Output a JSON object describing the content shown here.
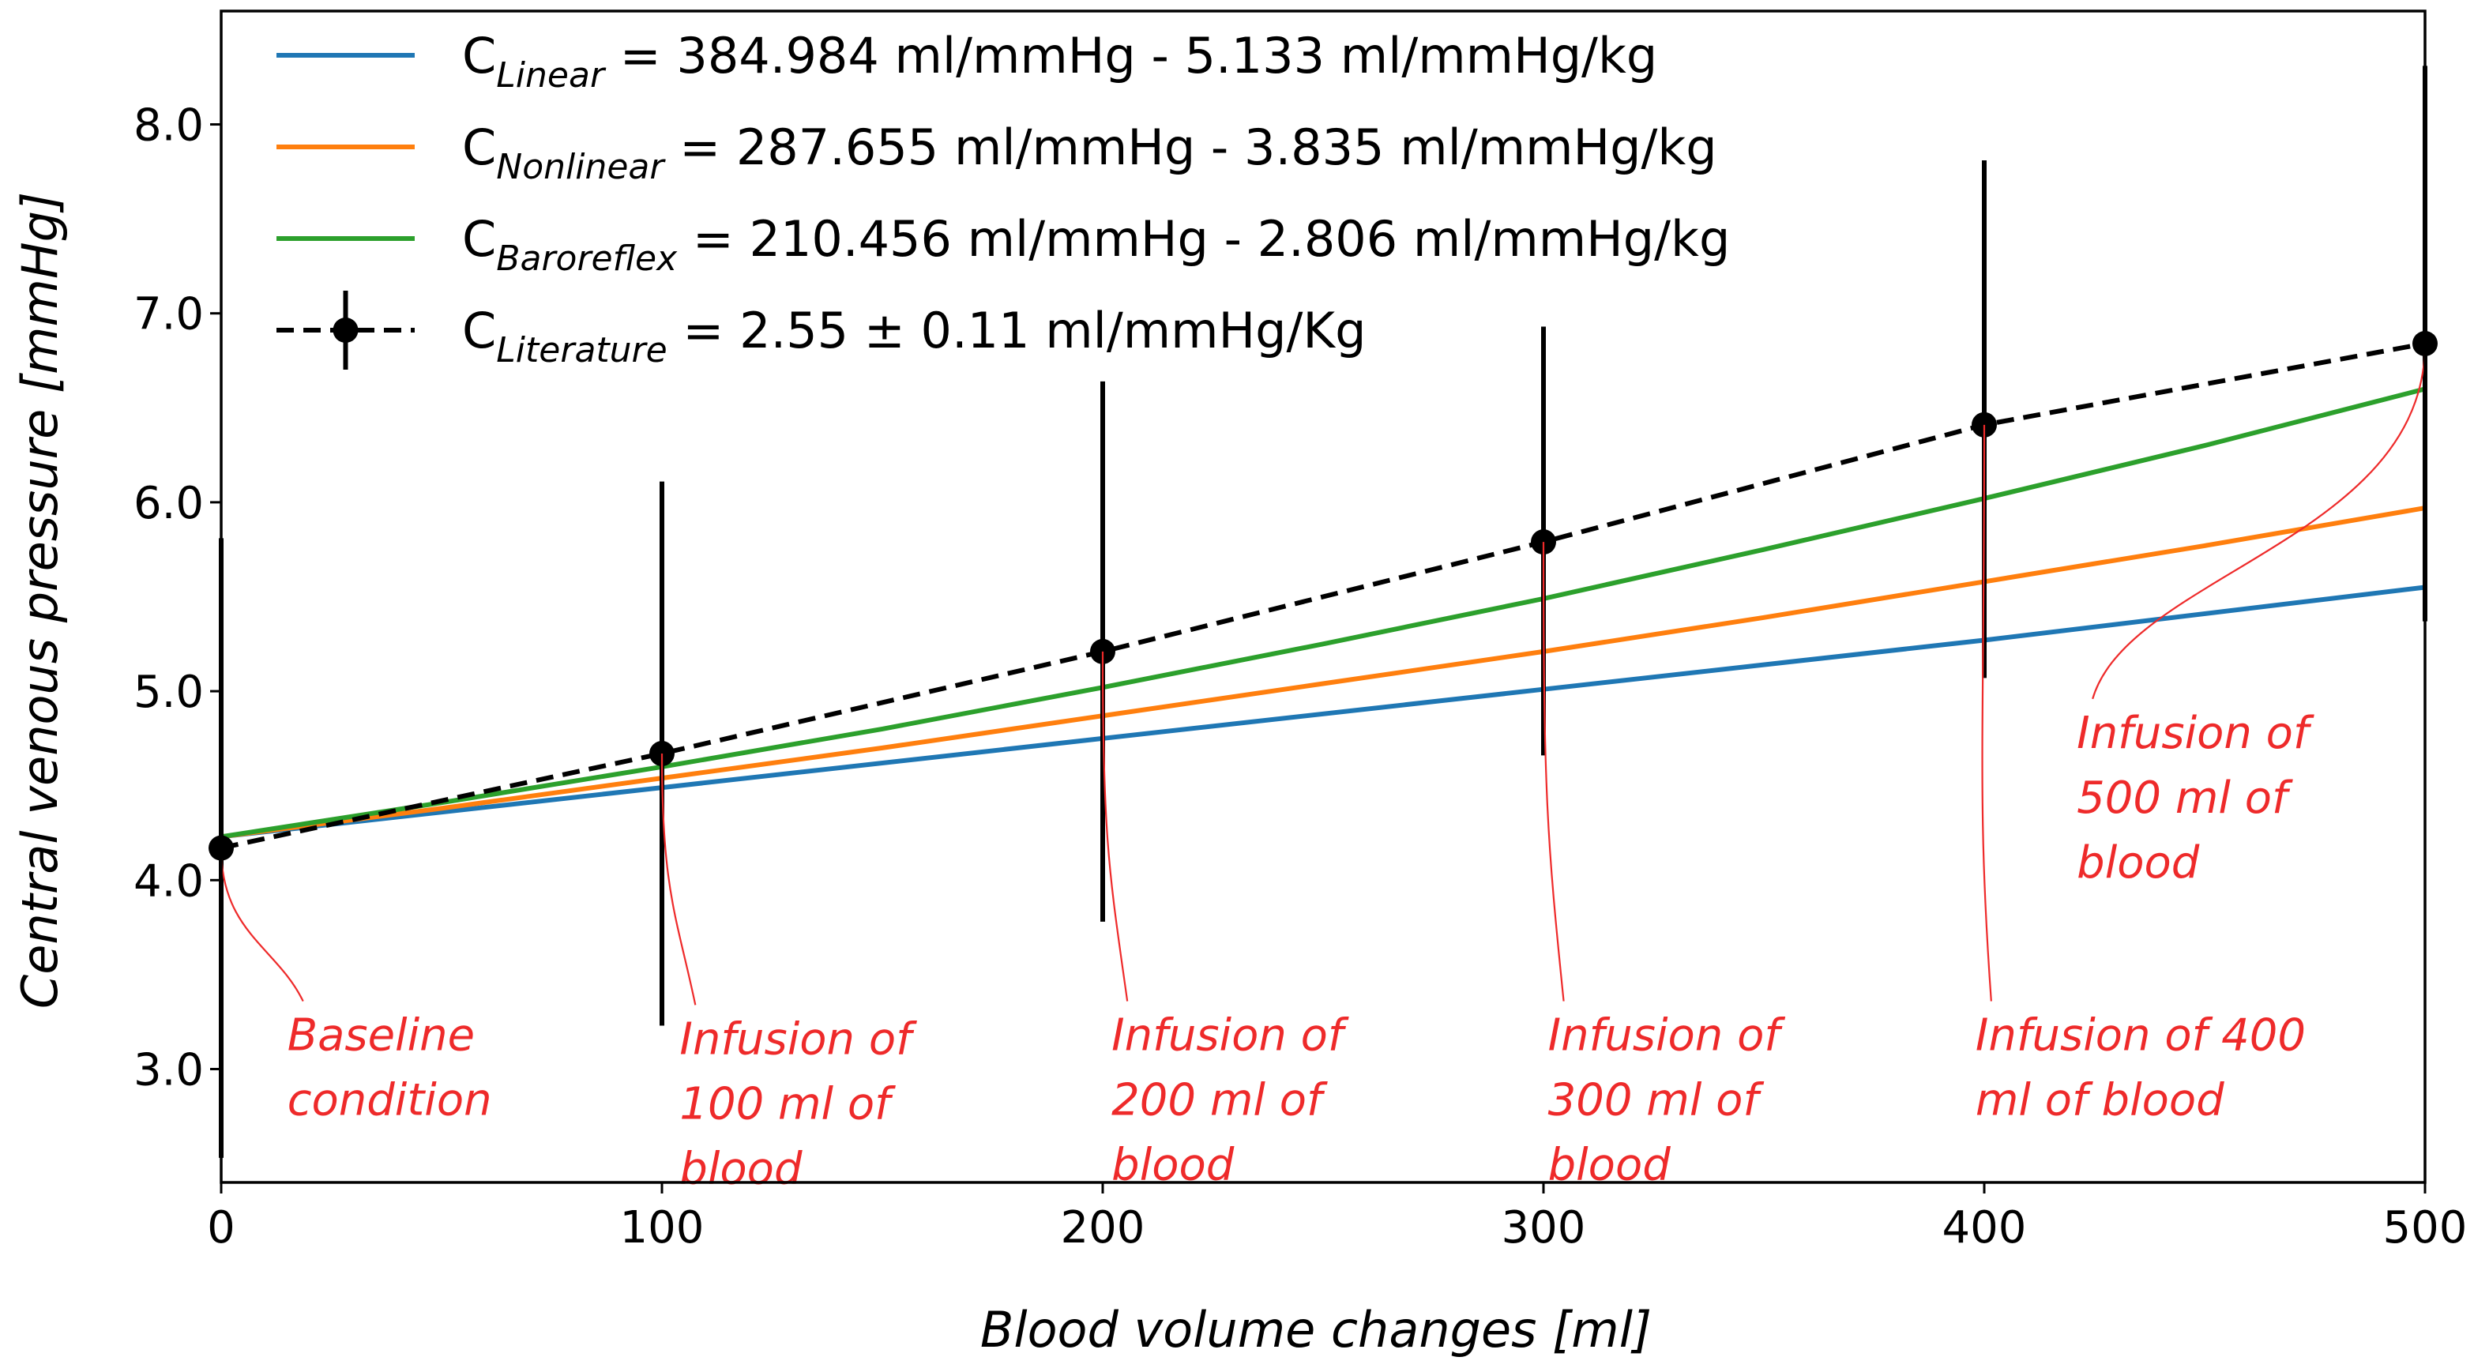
{
  "chart_data": {
    "type": "line",
    "title": "",
    "xlabel": "Blood volume changes [ml]",
    "ylabel": "Central venous pressure [mmHg]",
    "xlim": [
      0,
      500
    ],
    "ylim": [
      2.4,
      8.6
    ],
    "xticks": [
      0,
      100,
      200,
      300,
      400,
      500
    ],
    "xtick_labels": [
      "0",
      "100",
      "200",
      "300",
      "400",
      "500"
    ],
    "yticks": [
      3.0,
      4.0,
      5.0,
      6.0,
      7.0,
      8.0
    ],
    "ytick_labels": [
      "3.0",
      "4.0",
      "5.0",
      "6.0",
      "7.0",
      "8.0"
    ],
    "grid": false,
    "legend_position": "top-left",
    "series": [
      {
        "name_main": "C",
        "name_sub": "Linear",
        "name_rest": " =  384.984 ml/mmHg -  5.133 ml/mmHg/kg",
        "color": "#1f77b4",
        "style": "solid",
        "x": [
          0,
          100,
          200,
          300,
          400,
          500
        ],
        "y": [
          4.23,
          4.49,
          4.75,
          5.01,
          5.27,
          5.55
        ]
      },
      {
        "name_main": "C",
        "name_sub": "Nonlinear",
        "name_rest": " =  287.655 ml/mmHg -  3.835 ml/mmHg/kg",
        "color": "#ff7f0e",
        "style": "solid",
        "x": [
          0,
          50,
          100,
          150,
          200,
          250,
          300,
          350,
          400,
          450,
          500
        ],
        "y": [
          4.23,
          4.38,
          4.54,
          4.7,
          4.87,
          5.04,
          5.21,
          5.39,
          5.58,
          5.77,
          5.97
        ]
      },
      {
        "name_main": "C",
        "name_sub": "Baroreflex",
        "name_rest": " =  210.456 ml/mmHg -  2.806 ml/mmHg/kg",
        "color": "#2ca02c",
        "style": "solid",
        "x": [
          0,
          50,
          100,
          150,
          200,
          250,
          300,
          350,
          400,
          450,
          500
        ],
        "y": [
          4.23,
          4.41,
          4.6,
          4.8,
          5.02,
          5.25,
          5.49,
          5.75,
          6.02,
          6.3,
          6.6
        ]
      },
      {
        "name_main": "C",
        "name_sub": "Literature",
        "name_rest": " = 2.55 ± 0.11 ml/mmHg/Kg",
        "color": "#000000",
        "style": "dashed",
        "markers": true,
        "x": [
          0,
          100,
          200,
          300,
          400,
          500
        ],
        "y": [
          4.17,
          4.67,
          5.21,
          5.79,
          6.41,
          6.84
        ],
        "yerr_low": [
          2.53,
          3.23,
          3.78,
          4.66,
          5.07,
          5.37
        ],
        "yerr_high": [
          5.81,
          6.11,
          6.64,
          6.93,
          7.81,
          8.31
        ]
      }
    ],
    "annotations": [
      {
        "lines": [
          "Baseline",
          "condition"
        ],
        "x": 0,
        "y": 4.17,
        "text_x": 15,
        "text_y": 3.1
      },
      {
        "lines": [
          "Infusion of",
          "100 ml of",
          "blood"
        ],
        "x": 100,
        "y": 4.67,
        "text_x": 104,
        "text_y": 3.08
      },
      {
        "lines": [
          "Infusion of",
          "200 ml of",
          "blood"
        ],
        "x": 200,
        "y": 5.21,
        "text_x": 202,
        "text_y": 3.1
      },
      {
        "lines": [
          "Infusion of",
          "300 ml of",
          "blood"
        ],
        "x": 300,
        "y": 5.79,
        "text_x": 301,
        "text_y": 3.1
      },
      {
        "lines": [
          "Infusion of 400",
          "ml of blood"
        ],
        "x": 400,
        "y": 6.41,
        "text_x": 398,
        "text_y": 3.1
      },
      {
        "lines": [
          "Infusion of",
          "500 ml of",
          "blood"
        ],
        "x": 500,
        "y": 6.84,
        "text_x": 421,
        "text_y": 4.7
      }
    ]
  }
}
